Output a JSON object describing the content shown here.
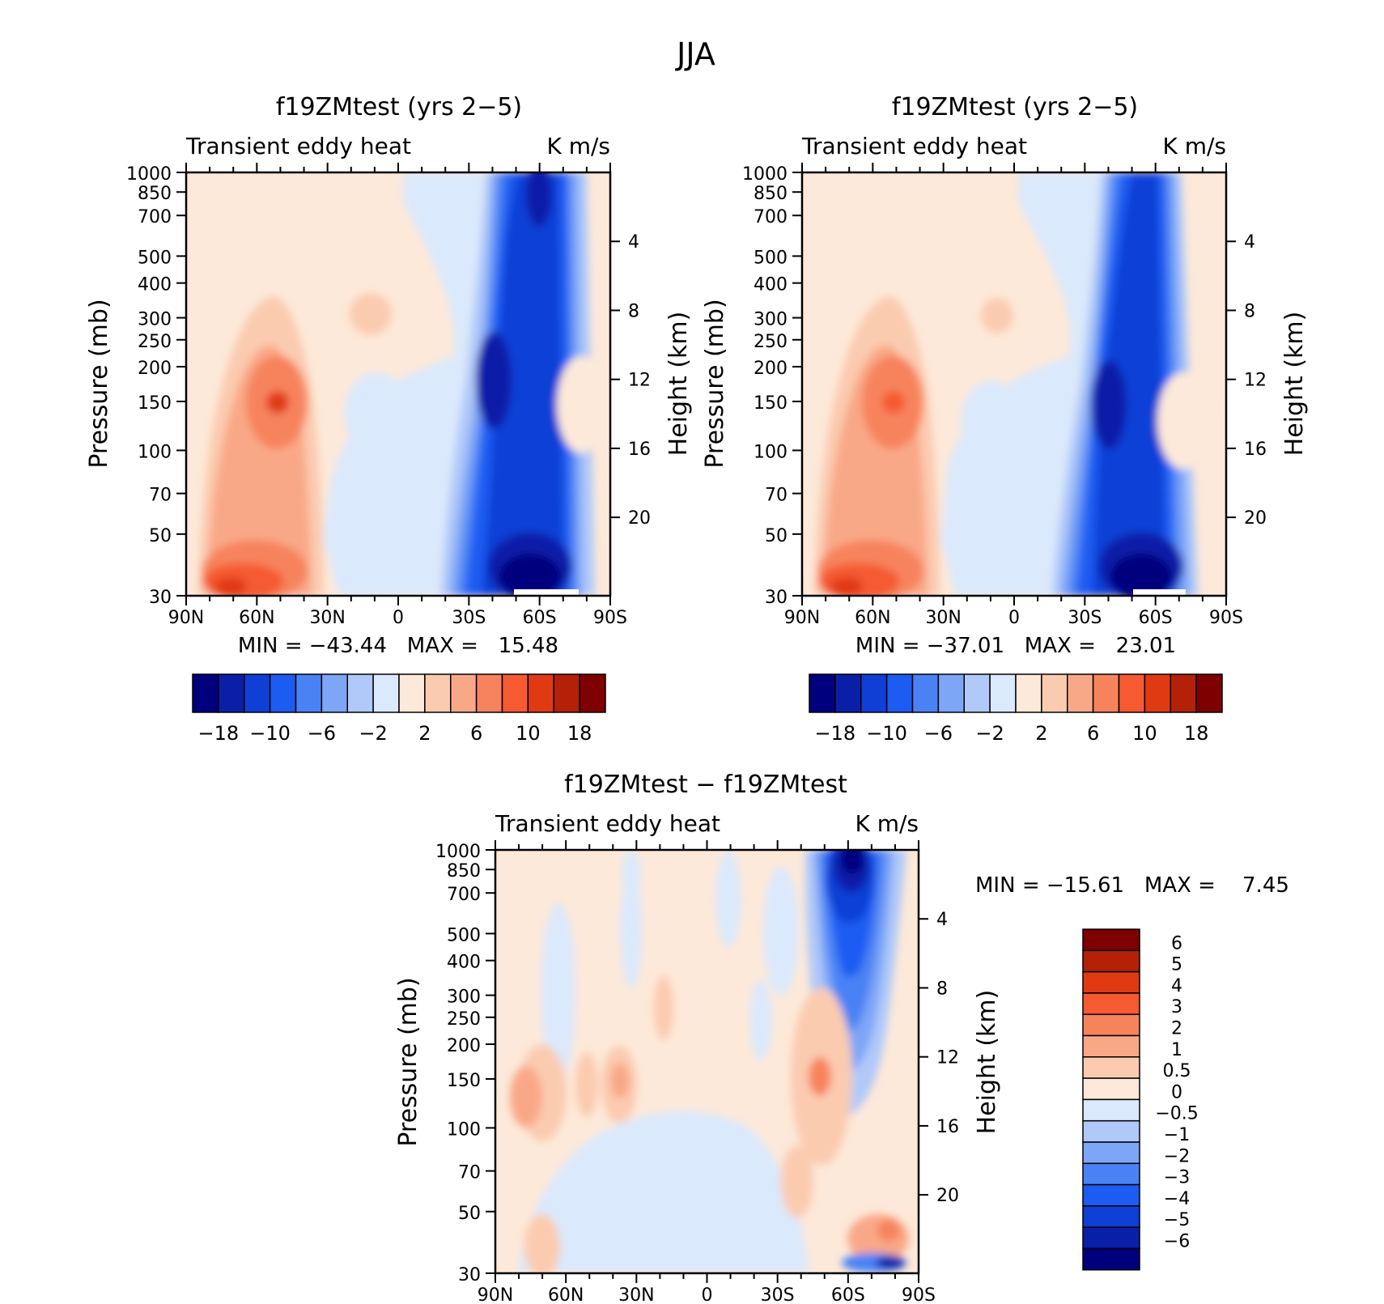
{
  "figure": {
    "title": "JJA"
  },
  "colors": {
    "blue_scale": [
      "#00007f",
      "#0a1fa8",
      "#0f3fd6",
      "#1d5cf2",
      "#4a82f5",
      "#7ea6f7",
      "#b0c9f9",
      "#dbe9fc"
    ],
    "red_scale": [
      "#fde9d9",
      "#fbcbb0",
      "#f9a887",
      "#f7835d",
      "#f55a30",
      "#e03a12",
      "#b52008",
      "#7f0000"
    ]
  },
  "panels": [
    {
      "id": "panel-left",
      "title": "f19ZMtest (yrs 2−5)",
      "left_label": "Transient eddy heat",
      "right_label": "K m/s",
      "ylabel": "Pressure (mb)",
      "ylabel_right": "Height (km)",
      "minmax": "MIN = −43.44   MAX =   15.48"
    },
    {
      "id": "panel-right",
      "title": "f19ZMtest (yrs 2−5)",
      "left_label": "Transient eddy heat",
      "right_label": "K m/s",
      "ylabel": "Pressure (mb)",
      "ylabel_right": "Height (km)",
      "minmax": "MIN = −37.01   MAX =   23.01"
    },
    {
      "id": "panel-diff",
      "title": "f19ZMtest − f19ZMtest",
      "left_label": "Transient eddy heat",
      "right_label": "K m/s",
      "ylabel": "Pressure (mb)",
      "ylabel_right": "Height (km)",
      "minmax": "MIN = −15.61   MAX =    7.45"
    }
  ],
  "colorbar_top": {
    "labels": [
      "−18",
      "−10",
      "−6",
      "−2",
      "2",
      "6",
      "10",
      "18"
    ]
  },
  "colorbar_diff": {
    "labels": [
      "6",
      "5",
      "4",
      "3",
      "2",
      "1",
      "0.5",
      "0",
      "−0.5",
      "−1",
      "−2",
      "−3",
      "−4",
      "−5",
      "−6"
    ]
  },
  "chart_data": [
    {
      "type": "heatmap",
      "panel": "panel-left",
      "title": "f19ZMtest (yrs 2−5)",
      "xlabel": "",
      "ylabel": "Pressure (mb)",
      "ylabel_right": "Height (km)",
      "units": "K m/s",
      "x_ticks": [
        "90N",
        "60N",
        "30N",
        "0",
        "30S",
        "60S",
        "90S"
      ],
      "y_ticks": [
        "30",
        "50",
        "70",
        "100",
        "150",
        "200",
        "250",
        "300",
        "400",
        "500",
        "700",
        "850",
        "1000"
      ],
      "y_right_ticks": [
        "20",
        "16",
        "12",
        "8",
        "4"
      ],
      "contour_levels": [
        -18,
        -14,
        -10,
        -8,
        -6,
        -4,
        -2,
        0,
        2,
        4,
        6,
        8,
        10,
        14,
        18
      ],
      "min": -43.44,
      "max": 15.48
    },
    {
      "type": "heatmap",
      "panel": "panel-right",
      "title": "f19ZMtest (yrs 2−5)",
      "xlabel": "",
      "ylabel": "Pressure (mb)",
      "ylabel_right": "Height (km)",
      "units": "K m/s",
      "x_ticks": [
        "90N",
        "60N",
        "30N",
        "0",
        "30S",
        "60S",
        "90S"
      ],
      "y_ticks": [
        "30",
        "50",
        "70",
        "100",
        "150",
        "200",
        "250",
        "300",
        "400",
        "500",
        "700",
        "850",
        "1000"
      ],
      "y_right_ticks": [
        "20",
        "16",
        "12",
        "8",
        "4"
      ],
      "contour_levels": [
        -18,
        -14,
        -10,
        -8,
        -6,
        -4,
        -2,
        0,
        2,
        4,
        6,
        8,
        10,
        14,
        18
      ],
      "min": -37.01,
      "max": 23.01
    },
    {
      "type": "heatmap",
      "panel": "panel-diff",
      "title": "f19ZMtest − f19ZMtest",
      "xlabel": "",
      "ylabel": "Pressure (mb)",
      "ylabel_right": "Height (km)",
      "units": "K m/s",
      "x_ticks": [
        "90N",
        "60N",
        "30N",
        "0",
        "30S",
        "60S",
        "90S"
      ],
      "y_ticks": [
        "30",
        "50",
        "70",
        "100",
        "150",
        "200",
        "250",
        "300",
        "400",
        "500",
        "700",
        "850",
        "1000"
      ],
      "y_right_ticks": [
        "20",
        "16",
        "12",
        "8",
        "4"
      ],
      "contour_levels": [
        -6,
        -5,
        -4,
        -3,
        -2,
        -1,
        -0.5,
        0,
        0.5,
        1,
        2,
        3,
        4,
        5,
        6
      ],
      "min": -15.61,
      "max": 7.45
    }
  ]
}
